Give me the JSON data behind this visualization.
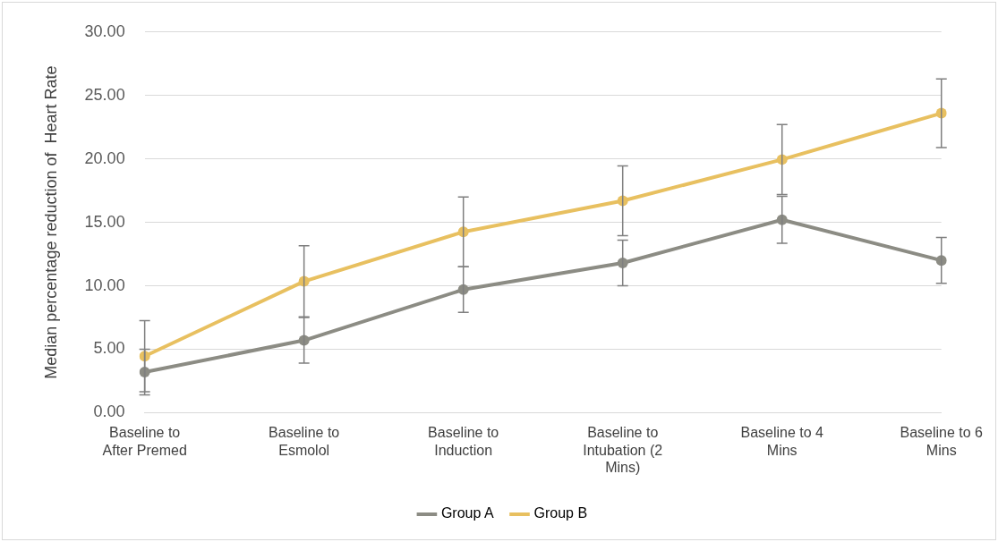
{
  "chart_data": {
    "type": "line",
    "ylabel": "Median percentage reduction of  Heart Rate",
    "categories": [
      "Baseline to After Premed",
      "Baseline to Esmolol",
      "Baseline to Induction",
      "Baseline to Intubation (2 Mins)",
      "Baseline to 4 Mins",
      "Baseline to 6 Mins"
    ],
    "series": [
      {
        "name": "Group A",
        "color": "#8c8c84",
        "values": [
          3.2,
          5.7,
          9.7,
          11.8,
          15.2,
          12.0
        ],
        "errors": [
          1.8,
          1.8,
          1.8,
          1.8,
          1.85,
          1.8
        ]
      },
      {
        "name": "Group B",
        "color": "#e8c060",
        "values": [
          4.45,
          10.35,
          14.25,
          16.7,
          19.95,
          23.6
        ],
        "errors": [
          2.8,
          2.8,
          2.75,
          2.75,
          2.75,
          2.7
        ]
      }
    ],
    "ylim": [
      0,
      30
    ],
    "yticks": [
      {
        "value": 0,
        "label": "0.00"
      },
      {
        "value": 5,
        "label": "5.00"
      },
      {
        "value": 10,
        "label": "10.00"
      },
      {
        "value": 15,
        "label": "15.00"
      },
      {
        "value": 20,
        "label": "20.00"
      },
      {
        "value": 25,
        "label": "25.00"
      },
      {
        "value": 30,
        "label": "30.00"
      }
    ],
    "grid": "y",
    "legend": "bottom",
    "marker": "circle",
    "line_style": "solid"
  }
}
